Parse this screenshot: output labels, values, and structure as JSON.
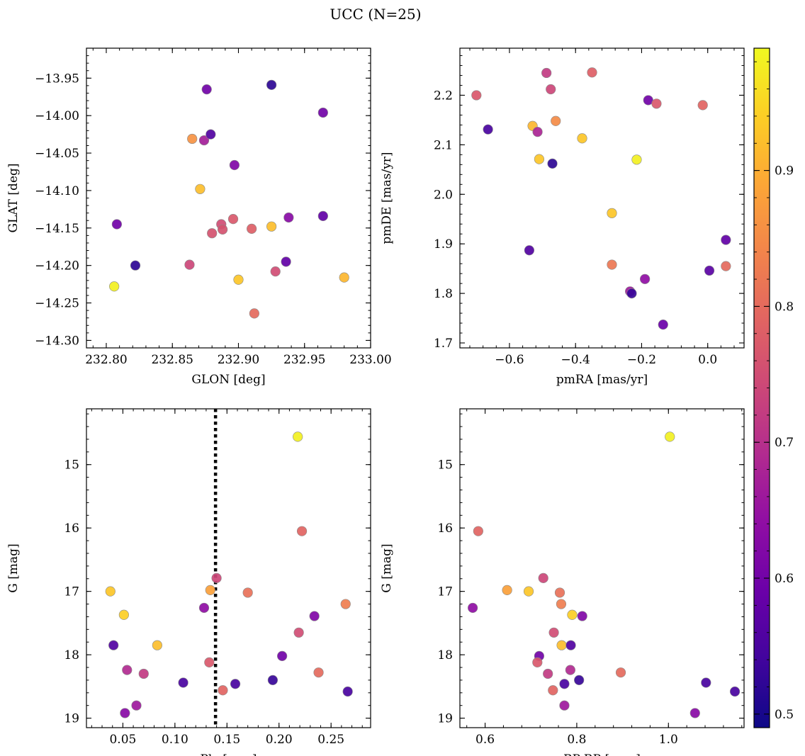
{
  "figure": {
    "title": "UCC (N=25)"
  },
  "colorbar": {
    "cmap": "plasma",
    "range": [
      0.49,
      0.99
    ],
    "ticks": [
      0.5,
      0.6,
      0.7,
      0.8,
      0.9
    ]
  },
  "chart_data": [
    {
      "type": "scatter",
      "xlabel": "GLON [deg]",
      "ylabel": "GLAT [deg]",
      "xlim": [
        232.785,
        233.0
      ],
      "ylim": [
        -14.31,
        -13.91
      ],
      "xticks": [
        232.8,
        232.85,
        232.9,
        232.95,
        233.0
      ],
      "yticks": [
        -13.95,
        -14.0,
        -14.05,
        -14.1,
        -14.15,
        -14.2,
        -14.25,
        -14.3
      ],
      "points": [
        {
          "x": 232.808,
          "y": -14.145,
          "c": 0.6
        },
        {
          "x": 232.822,
          "y": -14.2,
          "c": 0.52
        },
        {
          "x": 232.806,
          "y": -14.228,
          "c": 0.98
        },
        {
          "x": 232.876,
          "y": -13.965,
          "c": 0.6
        },
        {
          "x": 232.925,
          "y": -13.959,
          "c": 0.52
        },
        {
          "x": 232.964,
          "y": -13.996,
          "c": 0.6
        },
        {
          "x": 232.865,
          "y": -14.031,
          "c": 0.86
        },
        {
          "x": 232.874,
          "y": -14.033,
          "c": 0.67
        },
        {
          "x": 232.879,
          "y": -14.025,
          "c": 0.56
        },
        {
          "x": 232.897,
          "y": -14.066,
          "c": 0.62
        },
        {
          "x": 232.871,
          "y": -14.098,
          "c": 0.92
        },
        {
          "x": 232.887,
          "y": -14.145,
          "c": 0.75
        },
        {
          "x": 232.896,
          "y": -14.138,
          "c": 0.77
        },
        {
          "x": 232.88,
          "y": -14.157,
          "c": 0.76
        },
        {
          "x": 232.888,
          "y": -14.152,
          "c": 0.76
        },
        {
          "x": 232.91,
          "y": -14.151,
          "c": 0.78
        },
        {
          "x": 232.925,
          "y": -14.148,
          "c": 0.92
        },
        {
          "x": 232.938,
          "y": -14.136,
          "c": 0.63
        },
        {
          "x": 232.964,
          "y": -14.134,
          "c": 0.58
        },
        {
          "x": 232.863,
          "y": -14.199,
          "c": 0.74
        },
        {
          "x": 232.936,
          "y": -14.195,
          "c": 0.58
        },
        {
          "x": 232.928,
          "y": -14.208,
          "c": 0.75
        },
        {
          "x": 232.9,
          "y": -14.219,
          "c": 0.93
        },
        {
          "x": 232.98,
          "y": -14.216,
          "c": 0.91
        },
        {
          "x": 232.912,
          "y": -14.264,
          "c": 0.8
        }
      ]
    },
    {
      "type": "scatter",
      "xlabel": "pmRA [mas/yr]",
      "ylabel": "pmDE [mas/yr]",
      "xlim": [
        -0.75,
        0.11
      ],
      "ylim": [
        1.69,
        2.295
      ],
      "xticks": [
        -0.6,
        -0.4,
        -0.2,
        0.0
      ],
      "yticks": [
        1.7,
        1.8,
        1.9,
        2.0,
        2.1,
        2.2
      ],
      "points": [
        {
          "x": -0.7,
          "y": 2.2,
          "c": 0.77
        },
        {
          "x": -0.665,
          "y": 2.131,
          "c": 0.55
        },
        {
          "x": -0.54,
          "y": 1.887,
          "c": 0.56
        },
        {
          "x": -0.53,
          "y": 2.138,
          "c": 0.91
        },
        {
          "x": -0.515,
          "y": 2.126,
          "c": 0.68
        },
        {
          "x": -0.51,
          "y": 2.071,
          "c": 0.93
        },
        {
          "x": -0.488,
          "y": 2.245,
          "c": 0.72
        },
        {
          "x": -0.475,
          "y": 2.212,
          "c": 0.74
        },
        {
          "x": -0.47,
          "y": 2.062,
          "c": 0.52
        },
        {
          "x": -0.46,
          "y": 2.148,
          "c": 0.85
        },
        {
          "x": -0.38,
          "y": 2.113,
          "c": 0.93
        },
        {
          "x": -0.35,
          "y": 2.246,
          "c": 0.78
        },
        {
          "x": -0.29,
          "y": 1.962,
          "c": 0.93
        },
        {
          "x": -0.29,
          "y": 1.858,
          "c": 0.82
        },
        {
          "x": -0.235,
          "y": 1.804,
          "c": 0.66
        },
        {
          "x": -0.23,
          "y": 1.8,
          "c": 0.53
        },
        {
          "x": -0.215,
          "y": 2.07,
          "c": 0.98
        },
        {
          "x": -0.19,
          "y": 1.829,
          "c": 0.64
        },
        {
          "x": -0.18,
          "y": 2.19,
          "c": 0.6
        },
        {
          "x": -0.155,
          "y": 2.183,
          "c": 0.77
        },
        {
          "x": -0.135,
          "y": 1.737,
          "c": 0.59
        },
        {
          "x": -0.015,
          "y": 2.18,
          "c": 0.79
        },
        {
          "x": 0.005,
          "y": 1.846,
          "c": 0.57
        },
        {
          "x": 0.055,
          "y": 1.908,
          "c": 0.58
        },
        {
          "x": 0.055,
          "y": 1.855,
          "c": 0.8
        }
      ]
    },
    {
      "type": "scatter",
      "xlabel": "Plx [mas]",
      "ylabel": "G [mag]",
      "xlim": [
        0.015,
        0.288
      ],
      "ylim": [
        19.15,
        14.12
      ],
      "invert_y": true,
      "vline": 0.139,
      "xticks": [
        0.05,
        0.1,
        0.15,
        0.2,
        0.25
      ],
      "yticks": [
        15,
        16,
        17,
        18,
        19
      ],
      "points": [
        {
          "x": 0.038,
          "y": 17.0,
          "c": 0.93
        },
        {
          "x": 0.041,
          "y": 17.85,
          "c": 0.56
        },
        {
          "x": 0.051,
          "y": 17.37,
          "c": 0.94
        },
        {
          "x": 0.052,
          "y": 18.92,
          "c": 0.63
        },
        {
          "x": 0.054,
          "y": 18.24,
          "c": 0.69
        },
        {
          "x": 0.063,
          "y": 18.8,
          "c": 0.66
        },
        {
          "x": 0.07,
          "y": 18.3,
          "c": 0.72
        },
        {
          "x": 0.083,
          "y": 17.85,
          "c": 0.92
        },
        {
          "x": 0.108,
          "y": 18.44,
          "c": 0.55
        },
        {
          "x": 0.128,
          "y": 17.26,
          "c": 0.64
        },
        {
          "x": 0.133,
          "y": 18.12,
          "c": 0.77
        },
        {
          "x": 0.134,
          "y": 16.98,
          "c": 0.88
        },
        {
          "x": 0.14,
          "y": 16.79,
          "c": 0.74
        },
        {
          "x": 0.146,
          "y": 18.56,
          "c": 0.79
        },
        {
          "x": 0.158,
          "y": 18.46,
          "c": 0.55
        },
        {
          "x": 0.17,
          "y": 17.02,
          "c": 0.81
        },
        {
          "x": 0.194,
          "y": 18.4,
          "c": 0.53
        },
        {
          "x": 0.203,
          "y": 18.02,
          "c": 0.6
        },
        {
          "x": 0.218,
          "y": 14.56,
          "c": 0.98
        },
        {
          "x": 0.219,
          "y": 17.65,
          "c": 0.75
        },
        {
          "x": 0.222,
          "y": 16.05,
          "c": 0.79
        },
        {
          "x": 0.234,
          "y": 17.39,
          "c": 0.62
        },
        {
          "x": 0.238,
          "y": 18.28,
          "c": 0.8
        },
        {
          "x": 0.264,
          "y": 17.2,
          "c": 0.83
        },
        {
          "x": 0.266,
          "y": 18.58,
          "c": 0.55
        }
      ]
    },
    {
      "type": "scatter",
      "xlabel": "BP-RP [mag]",
      "ylabel": "G [mag]",
      "xlim": [
        0.545,
        1.165
      ],
      "ylim": [
        19.15,
        14.12
      ],
      "invert_y": true,
      "xticks": [
        0.6,
        0.8,
        1.0
      ],
      "yticks": [
        15,
        16,
        17,
        18,
        19
      ],
      "points": [
        {
          "x": 1.003,
          "y": 14.56,
          "c": 0.98
        },
        {
          "x": 0.585,
          "y": 16.05,
          "c": 0.79
        },
        {
          "x": 0.573,
          "y": 17.26,
          "c": 0.64
        },
        {
          "x": 0.648,
          "y": 16.98,
          "c": 0.88
        },
        {
          "x": 0.695,
          "y": 17.0,
          "c": 0.93
        },
        {
          "x": 0.727,
          "y": 16.79,
          "c": 0.74
        },
        {
          "x": 0.763,
          "y": 17.02,
          "c": 0.81
        },
        {
          "x": 0.766,
          "y": 17.2,
          "c": 0.83
        },
        {
          "x": 0.79,
          "y": 17.37,
          "c": 0.94
        },
        {
          "x": 0.812,
          "y": 17.39,
          "c": 0.62
        },
        {
          "x": 0.75,
          "y": 17.65,
          "c": 0.75
        },
        {
          "x": 0.767,
          "y": 17.85,
          "c": 0.92
        },
        {
          "x": 0.787,
          "y": 17.85,
          "c": 0.56
        },
        {
          "x": 0.718,
          "y": 18.02,
          "c": 0.6
        },
        {
          "x": 0.714,
          "y": 18.12,
          "c": 0.77
        },
        {
          "x": 0.786,
          "y": 18.24,
          "c": 0.69
        },
        {
          "x": 0.737,
          "y": 18.3,
          "c": 0.72
        },
        {
          "x": 0.896,
          "y": 18.28,
          "c": 0.8
        },
        {
          "x": 0.805,
          "y": 18.4,
          "c": 0.53
        },
        {
          "x": 0.773,
          "y": 18.46,
          "c": 0.55
        },
        {
          "x": 0.748,
          "y": 18.56,
          "c": 0.79
        },
        {
          "x": 1.082,
          "y": 18.44,
          "c": 0.55
        },
        {
          "x": 1.145,
          "y": 18.58,
          "c": 0.55
        },
        {
          "x": 0.773,
          "y": 18.8,
          "c": 0.66
        },
        {
          "x": 1.058,
          "y": 18.92,
          "c": 0.63
        }
      ]
    }
  ]
}
